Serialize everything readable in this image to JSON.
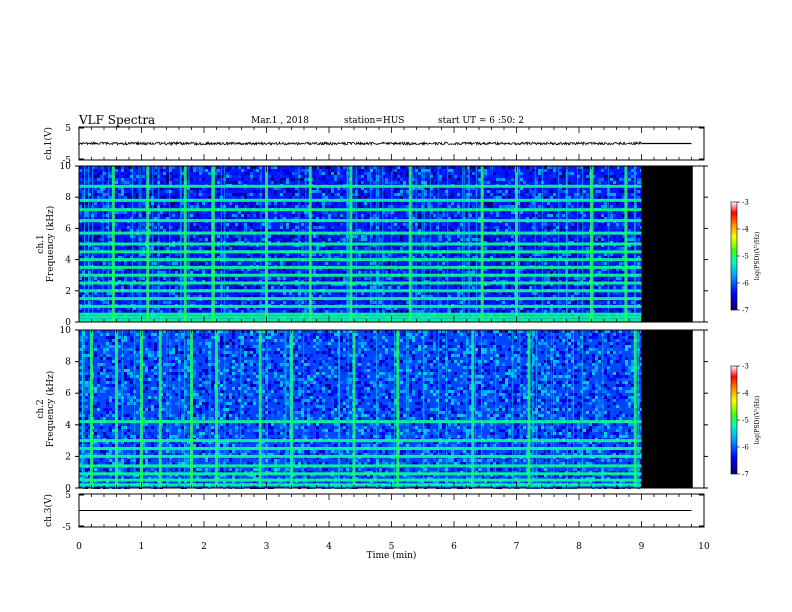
{
  "header": {
    "title": "VLF Spectra",
    "date": "Mar.1 , 2018",
    "station": "station=HUS",
    "start": "start UT = 6 :50: 2"
  },
  "chart_data": [
    {
      "type": "line",
      "panel": "ch1-waveform",
      "ylabel": "ch.1(V)",
      "ylim": [
        -5,
        5
      ],
      "yticks": [
        "5",
        "-5"
      ],
      "signal": {
        "baseline": 0,
        "amplitude_approx": 0.4,
        "data_end_min": 9.0,
        "flat_after_min": 9.0
      }
    },
    {
      "type": "heatmap",
      "panel": "ch1-spectrogram",
      "ylabel": "ch.1\nFrequency (kHz)",
      "ylim": [
        0,
        10
      ],
      "yticks": [
        "0",
        "2",
        "4",
        "6",
        "8",
        "10"
      ],
      "xlim": [
        0,
        10
      ],
      "data_end_min": 9.0,
      "background_log_psd": -6.3,
      "horizontal_lines_khz": [
        0.1,
        0.3,
        0.5,
        1.0,
        1.5,
        2.0,
        2.5,
        3.0,
        3.5,
        4.0,
        4.5,
        5.0,
        5.7,
        6.5,
        7.2,
        7.8,
        8.7
      ],
      "bright_bursts_min": [
        0.55,
        1.1,
        1.7,
        2.15,
        3.0,
        3.7,
        4.35,
        5.3,
        6.45,
        7.0,
        8.2,
        8.75
      ],
      "colorbar": {
        "label": "log(PSD)(V²/Hz)",
        "range": [
          -7,
          -3
        ],
        "ticks": [
          "-3",
          "-4",
          "-5",
          "-6",
          "-7"
        ]
      }
    },
    {
      "type": "heatmap",
      "panel": "ch2-spectrogram",
      "ylabel": "ch.2\nFrequency (kHz)",
      "ylim": [
        0,
        10
      ],
      "yticks": [
        "0",
        "2",
        "4",
        "6",
        "8",
        "10"
      ],
      "xlim": [
        0,
        10
      ],
      "data_end_min": 9.0,
      "background_log_psd": -6.1,
      "horizontal_lines_khz": [
        0.2,
        0.5,
        0.9,
        1.4,
        2.0,
        2.5,
        3.0,
        4.2
      ],
      "bright_bursts_min": [
        0.2,
        0.6,
        1.0,
        1.3,
        1.8,
        2.2,
        2.9,
        3.4,
        4.4,
        5.1,
        6.3,
        7.2,
        8.9
      ],
      "colorbar": {
        "label": "log(PSD)(V²/Hz)",
        "range": [
          -7,
          -3
        ],
        "ticks": [
          "-3",
          "-4",
          "-5",
          "-6",
          "-7"
        ]
      }
    },
    {
      "type": "line",
      "panel": "ch3-waveform",
      "ylabel": "ch.3(V)",
      "ylim": [
        -5,
        5
      ],
      "yticks": [
        "5",
        "-5"
      ],
      "signal": {
        "baseline": 0,
        "amplitude_approx": 0
      }
    }
  ],
  "xaxis": {
    "label": "Time (min)",
    "range": [
      0,
      10
    ],
    "ticks": [
      "0",
      "1",
      "2",
      "3",
      "4",
      "5",
      "6",
      "7",
      "8",
      "9",
      "10"
    ]
  },
  "colors": {
    "frame": "#000000",
    "waveform": "#000000",
    "no_data": "#000000"
  }
}
